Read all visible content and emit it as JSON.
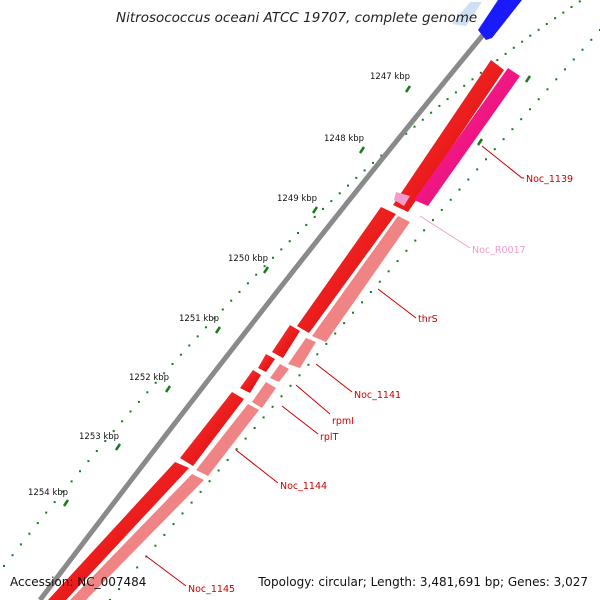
{
  "title": "Nitrosococcus oceani ATCC 19707, complete genome",
  "footer": {
    "accession": "Accession: NC_007484",
    "stats": "Topology: circular; Length: 3,481,691 bp; Genes: 3,027"
  },
  "ticks": [
    "1247 kbp",
    "1248 kbp",
    "1249 kbp",
    "1250 kbp",
    "1251 kbp",
    "1252 kbp",
    "1253 kbp",
    "1254 kbp"
  ],
  "genes": [
    {
      "name": "Noc_1139",
      "color": "#cc0000"
    },
    {
      "name": "Noc_R0017",
      "color": "#f39ccc"
    },
    {
      "name": "thrS",
      "color": "#cc0000"
    },
    {
      "name": "Noc_1141",
      "color": "#cc0000"
    },
    {
      "name": "rpmI",
      "color": "#cc0000"
    },
    {
      "name": "rplT",
      "color": "#cc0000"
    },
    {
      "name": "Noc_1144",
      "color": "#cc0000"
    },
    {
      "name": "Noc_1145",
      "color": "#cc0000"
    }
  ],
  "colors": {
    "cds_forward": "#ff0000",
    "cds_reverse_light": "#f08080",
    "rna": "#ff1a8c",
    "backbone": "#888888",
    "tick": "#1a7a1a",
    "other_strand": "#0000ff"
  }
}
